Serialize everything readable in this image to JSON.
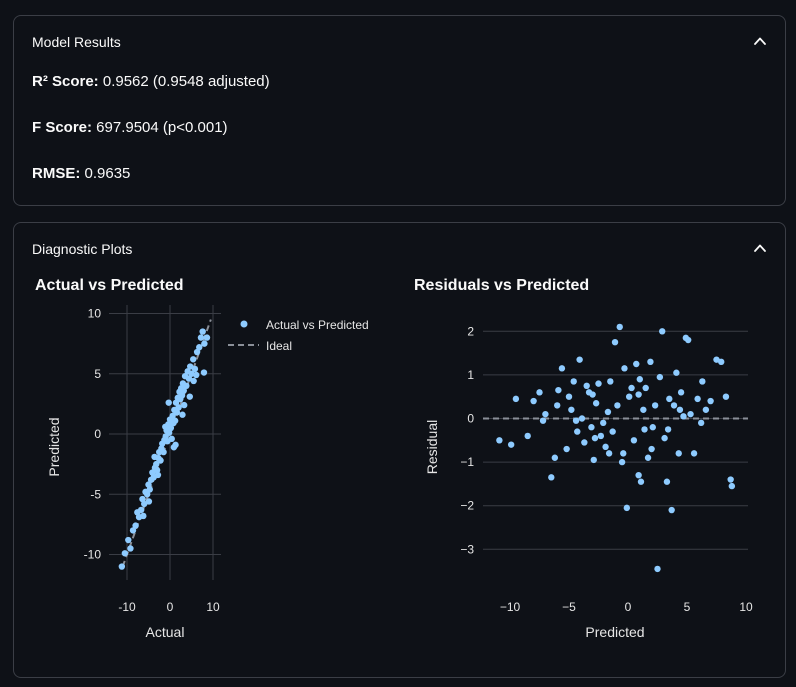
{
  "results": {
    "header": "Model Results",
    "r2_label": "R² Score:",
    "r2_value": " 0.9562 (0.9548 adjusted)",
    "f_label": "F Score:",
    "f_value": " 697.9504 (p<0.001)",
    "rmse_label": "RMSE:",
    "rmse_value": " 0.9635"
  },
  "plots": {
    "header": "Diagnostic Plots"
  },
  "colors": {
    "point": "#8ecbff",
    "ideal": "#8a8f98",
    "grid": "#3a3d45",
    "text": "#e6e6e6"
  },
  "chart_data": [
    {
      "type": "scatter",
      "title": "Actual vs Predicted",
      "xlabel": "Actual",
      "ylabel": "Predicted",
      "xlim": [
        -13,
        11
      ],
      "ylim": [
        -12,
        10.5
      ],
      "xticks": [
        -10,
        0,
        10
      ],
      "yticks": [
        -10,
        -5,
        0,
        5,
        10
      ],
      "legend": [
        "Actual vs Predicted",
        "Ideal"
      ],
      "legend_position": "top-right",
      "ideal_line": [
        [
          -11,
          -11
        ],
        [
          9.5,
          9.5
        ]
      ],
      "points": [
        [
          -11.2,
          -11.0
        ],
        [
          -10.5,
          -9.9
        ],
        [
          -9.7,
          -8.8
        ],
        [
          -9.2,
          -9.5
        ],
        [
          -8.6,
          -8.0
        ],
        [
          -8.0,
          -7.6
        ],
        [
          -7.6,
          -6.5
        ],
        [
          -7.2,
          -6.9
        ],
        [
          -6.7,
          -6.3
        ],
        [
          -6.4,
          -5.4
        ],
        [
          -6.0,
          -5.8
        ],
        [
          -5.7,
          -4.8
        ],
        [
          -5.3,
          -5.0
        ],
        [
          -5.0,
          -4.2
        ],
        [
          -4.7,
          -4.6
        ],
        [
          -4.4,
          -3.8
        ],
        [
          -4.1,
          -3.2
        ],
        [
          -3.8,
          -3.6
        ],
        [
          -3.5,
          -2.8
        ],
        [
          -3.2,
          -2.5
        ],
        [
          -3.0,
          -3.0
        ],
        [
          -2.7,
          -2.0
        ],
        [
          -2.5,
          -1.5
        ],
        [
          -2.2,
          -2.2
        ],
        [
          -2.0,
          -1.2
        ],
        [
          -1.8,
          -0.8
        ],
        [
          -1.5,
          -1.5
        ],
        [
          -1.3,
          -0.5
        ],
        [
          -1.0,
          -0.2
        ],
        [
          -0.8,
          0.3
        ],
        [
          -0.6,
          -0.6
        ],
        [
          -0.4,
          0.8
        ],
        [
          -0.2,
          0.1
        ],
        [
          0.0,
          1.2
        ],
        [
          0.2,
          0.5
        ],
        [
          0.4,
          -0.4
        ],
        [
          0.6,
          1.5
        ],
        [
          0.8,
          0.9
        ],
        [
          1.0,
          2.0
        ],
        [
          1.2,
          1.1
        ],
        [
          1.4,
          2.6
        ],
        [
          1.6,
          1.8
        ],
        [
          1.8,
          3.0
        ],
        [
          2.0,
          2.2
        ],
        [
          2.2,
          3.5
        ],
        [
          2.4,
          2.9
        ],
        [
          2.6,
          3.8
        ],
        [
          2.8,
          3.2
        ],
        [
          3.0,
          4.2
        ],
        [
          3.2,
          3.6
        ],
        [
          3.5,
          4.8
        ],
        [
          3.8,
          4.0
        ],
        [
          4.1,
          5.2
        ],
        [
          4.4,
          4.6
        ],
        [
          4.7,
          5.6
        ],
        [
          5.0,
          5.0
        ],
        [
          5.4,
          6.2
        ],
        [
          5.8,
          5.4
        ],
        [
          6.3,
          6.8
        ],
        [
          6.8,
          7.2
        ],
        [
          7.2,
          8.0
        ],
        [
          7.6,
          8.5
        ],
        [
          8.0,
          7.5
        ],
        [
          8.6,
          8.0
        ],
        [
          -0.3,
          2.6
        ],
        [
          1.3,
          -0.9
        ],
        [
          -2.8,
          -3.4
        ],
        [
          2.9,
          1.6
        ],
        [
          -4.9,
          -5.6
        ],
        [
          4.6,
          3.1
        ],
        [
          -6.2,
          -6.8
        ],
        [
          6.1,
          4.9
        ],
        [
          0.9,
          -1.1
        ],
        [
          -1.1,
          0.6
        ],
        [
          3.3,
          2.4
        ],
        [
          -3.6,
          -1.9
        ],
        [
          5.5,
          4.4
        ],
        [
          7.9,
          5.1
        ]
      ]
    },
    {
      "type": "scatter",
      "title": "Residuals vs Predicted",
      "xlabel": "Predicted",
      "ylabel": "Residual",
      "xlim": [
        -12,
        10.5
      ],
      "ylim": [
        -3.9,
        2.3
      ],
      "xticks": [
        -10,
        -5,
        0,
        5,
        10
      ],
      "yticks": [
        -3,
        -2,
        -1,
        0,
        1,
        2
      ],
      "zero_line": 0,
      "points": [
        [
          -10.9,
          -0.5
        ],
        [
          -9.9,
          -0.6
        ],
        [
          -9.5,
          0.45
        ],
        [
          -8.5,
          -0.4
        ],
        [
          -8.0,
          0.4
        ],
        [
          -7.5,
          0.6
        ],
        [
          -7.0,
          0.1
        ],
        [
          -6.5,
          -1.35
        ],
        [
          -6.2,
          -0.9
        ],
        [
          -6.0,
          0.3
        ],
        [
          -5.6,
          1.15
        ],
        [
          -5.2,
          -0.7
        ],
        [
          -5.0,
          0.5
        ],
        [
          -4.8,
          0.2
        ],
        [
          -4.6,
          0.85
        ],
        [
          -4.3,
          -0.3
        ],
        [
          -4.1,
          1.35
        ],
        [
          -3.9,
          0.0
        ],
        [
          -3.7,
          -0.55
        ],
        [
          -3.5,
          0.75
        ],
        [
          -3.3,
          0.6
        ],
        [
          -3.1,
          -0.2
        ],
        [
          -2.9,
          -0.95
        ],
        [
          -2.7,
          0.35
        ],
        [
          -2.5,
          0.8
        ],
        [
          -2.3,
          -0.4
        ],
        [
          -2.1,
          -0.1
        ],
        [
          -1.9,
          -0.65
        ],
        [
          -1.7,
          0.15
        ],
        [
          -1.5,
          0.85
        ],
        [
          -1.3,
          -0.3
        ],
        [
          -1.1,
          1.75
        ],
        [
          -0.9,
          0.3
        ],
        [
          -0.7,
          2.1
        ],
        [
          -0.5,
          -1.0
        ],
        [
          -0.3,
          1.15
        ],
        [
          -0.1,
          -2.05
        ],
        [
          0.1,
          0.5
        ],
        [
          0.3,
          0.7
        ],
        [
          0.5,
          -0.5
        ],
        [
          0.7,
          1.25
        ],
        [
          0.9,
          -1.3
        ],
        [
          1.1,
          -1.45
        ],
        [
          1.3,
          0.2
        ],
        [
          1.5,
          0.7
        ],
        [
          1.7,
          -0.9
        ],
        [
          1.9,
          1.3
        ],
        [
          2.1,
          -0.2
        ],
        [
          2.3,
          0.3
        ],
        [
          2.5,
          -3.45
        ],
        [
          2.7,
          0.95
        ],
        [
          2.9,
          2.0
        ],
        [
          3.1,
          -0.45
        ],
        [
          3.3,
          -1.45
        ],
        [
          3.5,
          0.45
        ],
        [
          3.7,
          -2.1
        ],
        [
          3.9,
          0.3
        ],
        [
          4.1,
          1.05
        ],
        [
          4.3,
          -0.8
        ],
        [
          4.5,
          0.6
        ],
        [
          4.7,
          0.05
        ],
        [
          4.9,
          1.85
        ],
        [
          5.1,
          1.8
        ],
        [
          5.3,
          0.1
        ],
        [
          5.6,
          -0.8
        ],
        [
          5.9,
          0.45
        ],
        [
          6.2,
          -0.1
        ],
        [
          6.6,
          0.2
        ],
        [
          7.0,
          0.4
        ],
        [
          7.5,
          1.35
        ],
        [
          7.9,
          1.3
        ],
        [
          8.3,
          0.5
        ],
        [
          8.7,
          -1.4
        ],
        [
          8.8,
          -1.55
        ],
        [
          -2.8,
          -0.45
        ],
        [
          -1.6,
          -0.8
        ],
        [
          -0.4,
          -0.8
        ],
        [
          1.0,
          0.9
        ],
        [
          3.4,
          -0.25
        ],
        [
          0.9,
          0.55
        ],
        [
          -5.9,
          0.65
        ],
        [
          4.4,
          0.2
        ],
        [
          -3.0,
          0.55
        ],
        [
          2.0,
          -0.7
        ],
        [
          -4.4,
          -0.05
        ],
        [
          1.4,
          -0.25
        ],
        [
          6.3,
          0.85
        ],
        [
          -7.2,
          -0.05
        ]
      ]
    }
  ]
}
